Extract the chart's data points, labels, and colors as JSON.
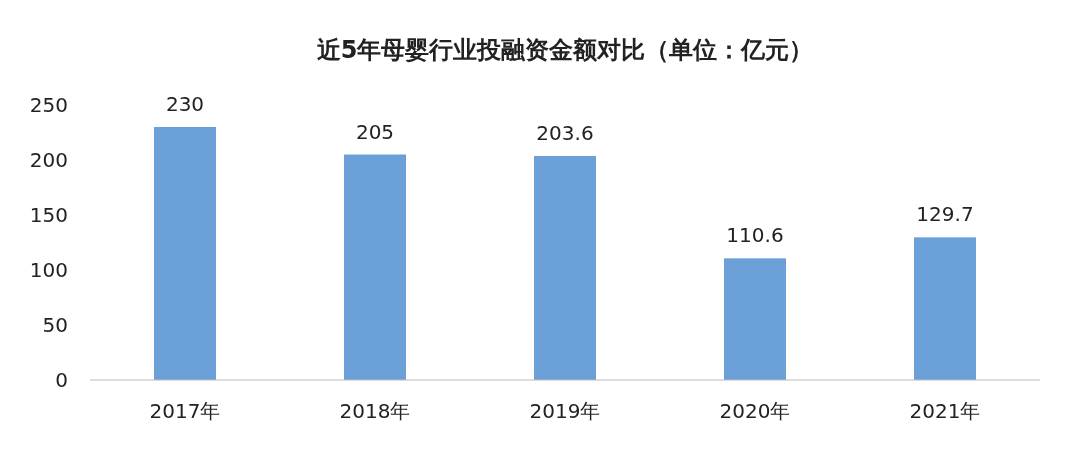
{
  "chart_data": {
    "type": "bar",
    "title": "近5年母婴行业投融资金额对比（单位：亿元）",
    "categories": [
      "2017年",
      "2018年",
      "2019年",
      "2020年",
      "2021年"
    ],
    "values": [
      230,
      205,
      203.6,
      110.6,
      129.7
    ],
    "color": "#6a9fd8",
    "ylim": [
      0,
      250
    ],
    "yticks": [
      0,
      50,
      100,
      150,
      200,
      250
    ],
    "data_labels": true
  }
}
